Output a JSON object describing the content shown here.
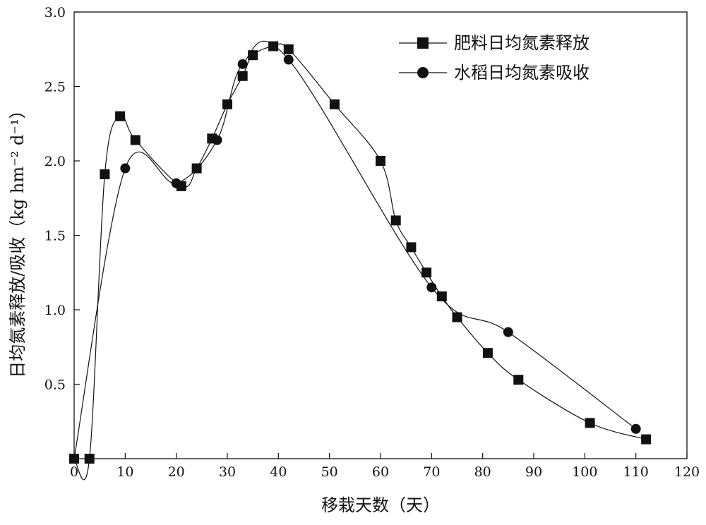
{
  "chart_data": {
    "type": "line",
    "xlabel": "移栽天数（天）",
    "ylabel": "日均氮素释放/吸收（kg hm⁻² d⁻¹）",
    "xlim": [
      0,
      120
    ],
    "ylim": [
      0,
      3.0
    ],
    "xticks": [
      0,
      10,
      20,
      30,
      40,
      50,
      60,
      70,
      80,
      90,
      100,
      110,
      120
    ],
    "yticks": [
      0.5,
      1.0,
      1.5,
      2.0,
      2.5,
      3.0
    ],
    "xtick_labels": [
      "0",
      "10",
      "20",
      "30",
      "40",
      "50",
      "60",
      "70",
      "80",
      "90",
      "100",
      "110",
      "120"
    ],
    "ytick_labels": [
      "0.5",
      "1.0",
      "1.5",
      "2.0",
      "2.5",
      "3.0"
    ],
    "grid": false,
    "legend_position": "top-right",
    "series": [
      {
        "name": "肥料日均氮素释放",
        "marker": "square",
        "x": [
          0,
          3,
          6,
          9,
          12,
          21,
          24,
          27,
          30,
          33,
          35,
          39,
          42,
          51,
          60,
          63,
          66,
          69,
          72,
          75,
          81,
          87,
          101,
          112
        ],
        "y": [
          0.0,
          0.0,
          1.91,
          2.3,
          2.14,
          1.83,
          1.95,
          2.15,
          2.38,
          2.57,
          2.71,
          2.77,
          2.75,
          2.38,
          2.0,
          1.6,
          1.42,
          1.25,
          1.09,
          0.95,
          0.71,
          0.53,
          0.24,
          0.13
        ]
      },
      {
        "name": "水稻日均氮素吸收",
        "marker": "circle",
        "x": [
          0,
          10,
          20,
          28,
          33,
          42,
          70,
          85,
          110
        ],
        "y": [
          0.0,
          1.95,
          1.85,
          2.14,
          2.65,
          2.68,
          1.15,
          0.85,
          0.2
        ]
      }
    ]
  }
}
